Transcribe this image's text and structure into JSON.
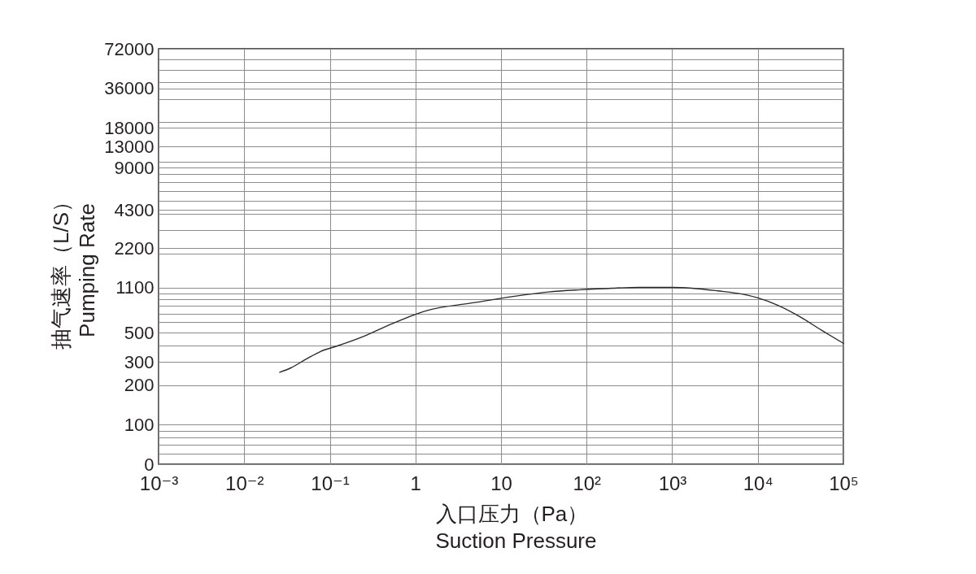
{
  "chart_data": {
    "type": "line",
    "xlabel": "入口压力（Pa）\nSuction Pressure",
    "ylabel": "抽气速率（L/S）\nPumping Rate",
    "log": "xy",
    "grid": true,
    "xlim": [
      0.001,
      100000
    ],
    "ylim": [
      0,
      72000
    ],
    "xticks": [
      {
        "value": 0.001,
        "label": "10⁻³"
      },
      {
        "value": 0.01,
        "label": "10⁻²"
      },
      {
        "value": 0.1,
        "label": "10⁻¹"
      },
      1,
      10,
      {
        "value": 100,
        "label": "10²"
      },
      {
        "value": 1000,
        "label": "10³"
      },
      {
        "value": 10000,
        "label": "10⁴"
      },
      {
        "value": 100000,
        "label": "10⁵"
      }
    ],
    "yticks": [
      0,
      {
        "value": 60,
        "label": null
      },
      {
        "value": 70,
        "label": null
      },
      {
        "value": 80,
        "label": null
      },
      {
        "value": 90,
        "label": null
      },
      100,
      200,
      300,
      {
        "value": 400,
        "label": null
      },
      500,
      {
        "value": 600,
        "label": null
      },
      {
        "value": 700,
        "label": null
      },
      {
        "value": 800,
        "label": null
      },
      {
        "value": 900,
        "label": null
      },
      {
        "value": 1000,
        "label": null
      },
      1100,
      {
        "value": 2000,
        "label": null
      },
      2200,
      {
        "value": 3000,
        "label": null
      },
      {
        "value": 4000,
        "label": null
      },
      4300,
      {
        "value": 5000,
        "label": null
      },
      {
        "value": 6000,
        "label": null
      },
      {
        "value": 7000,
        "label": null
      },
      {
        "value": 8000,
        "label": null
      },
      9000,
      {
        "value": 10000,
        "label": null
      },
      13000,
      18000,
      {
        "value": 20000,
        "label": null
      },
      {
        "value": 30000,
        "label": null
      },
      36000,
      {
        "value": 40000,
        "label": null
      },
      {
        "value": 50000,
        "label": null
      },
      {
        "value": 60000,
        "label": null
      },
      72000
    ],
    "x": [
      0.026,
      0.035,
      0.053,
      0.078,
      0.12,
      0.25,
      0.55,
      1.3,
      5.1,
      15,
      36,
      85,
      200,
      410,
      1000,
      1700,
      3400,
      6700,
      10000,
      17000,
      30000,
      56000,
      100000
    ],
    "series": [
      {
        "color": "#2b2b2b",
        "values": [
          250,
          270,
          315,
          360,
          395,
          470,
          590,
          730,
          850,
          950,
          1020,
          1060,
          1090,
          1105,
          1105,
          1090,
          1040,
          980,
          920,
          810,
          670,
          520,
          415
        ]
      }
    ]
  }
}
